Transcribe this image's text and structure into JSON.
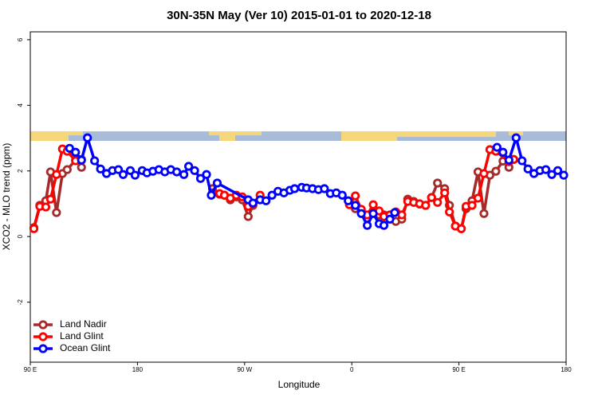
{
  "chart_data": {
    "type": "line",
    "title": "30N-35N May (Ver 10)   2015-01-01 to 2020-12-18",
    "x_label": "Longitude",
    "y_label": "XCO2 - MLO trend (ppm)",
    "xlim": [
      90,
      540
    ],
    "ylim": [
      -3.83,
      6.24
    ],
    "xticks": [
      {
        "value": 90,
        "label": "90 E"
      },
      {
        "value": 180,
        "label": "180"
      },
      {
        "value": 270,
        "label": "90 W"
      },
      {
        "value": 360,
        "label": "0"
      },
      {
        "value": 450,
        "label": "90 E"
      },
      {
        "value": 540,
        "label": "180"
      }
    ],
    "yticks": [
      -2,
      0,
      2,
      4,
      6
    ],
    "legend": "bottom-left",
    "series": [
      {
        "name": "Land Nadir",
        "color": "#a52a2a",
        "x": [
          93,
          98,
          103,
          107,
          112,
          117,
          121,
          128,
          133,
          243,
          249,
          253,
          258,
          263,
          268,
          273,
          277,
          358,
          363,
          368,
          373,
          378,
          383,
          387,
          392,
          397,
          402,
          407,
          412,
          417,
          422,
          427,
          432,
          438,
          442,
          447,
          452,
          456,
          461,
          466,
          471,
          476,
          481,
          487,
          492,
          496
        ],
        "values": [
          0.27,
          0.95,
          1.09,
          1.97,
          0.73,
          1.92,
          2.04,
          2.33,
          2.11,
          1.46,
          1.29,
          1.26,
          1.12,
          1.21,
          1.12,
          0.61,
          0.95,
          1.02,
          0.85,
          0.78,
          0.56,
          0.75,
          0.66,
          0.66,
          0.53,
          0.46,
          0.53,
          1.14,
          1.07,
          0.99,
          0.95,
          1.19,
          1.63,
          1.46,
          0.95,
          0.32,
          0.24,
          0.85,
          1.09,
          1.97,
          0.7,
          1.87,
          1.99,
          2.3,
          2.11,
          2.35
        ]
      },
      {
        "name": "Land Glint",
        "color": "#ff0000",
        "x": [
          93,
          98,
          103,
          107,
          112,
          117,
          121,
          128,
          133,
          243,
          249,
          253,
          258,
          263,
          268,
          273,
          277,
          283,
          358,
          363,
          368,
          373,
          378,
          383,
          387,
          392,
          397,
          402,
          407,
          412,
          417,
          422,
          427,
          432,
          438,
          442,
          447,
          452,
          456,
          461,
          466,
          471,
          476,
          481,
          492,
          496
        ],
        "values": [
          0.24,
          0.92,
          0.9,
          1.14,
          1.89,
          2.67,
          2.6,
          2.31,
          2.35,
          1.33,
          1.31,
          1.26,
          1.17,
          1.26,
          1.21,
          0.92,
          1.0,
          1.26,
          0.97,
          1.24,
          0.83,
          0.66,
          0.97,
          0.78,
          0.61,
          0.66,
          0.75,
          0.66,
          1.07,
          1.04,
          1.0,
          0.95,
          1.19,
          1.04,
          1.33,
          0.75,
          0.32,
          0.24,
          0.92,
          0.95,
          1.17,
          1.92,
          2.65,
          2.6,
          2.28,
          2.35
        ]
      },
      {
        "name": "Ocean Glint",
        "color": "#0000ff",
        "x": [
          123,
          128,
          133,
          138,
          144,
          149,
          154,
          159,
          164,
          168,
          174,
          178,
          184,
          188,
          193,
          198,
          203,
          208,
          213,
          219,
          223,
          228,
          233,
          238,
          242,
          247,
          273,
          277,
          283,
          288,
          293,
          298,
          303,
          308,
          312,
          318,
          322,
          327,
          332,
          337,
          342,
          347,
          352,
          357,
          363,
          368,
          373,
          378,
          383,
          387,
          392,
          396,
          482,
          487,
          492,
          498,
          503,
          508,
          513,
          518,
          523,
          528,
          533,
          538
        ],
        "values": [
          2.69,
          2.57,
          2.33,
          3.01,
          2.31,
          2.06,
          1.92,
          2.01,
          2.04,
          1.89,
          2.01,
          1.87,
          2.01,
          1.94,
          1.99,
          2.04,
          1.97,
          2.04,
          1.97,
          1.89,
          2.14,
          2.01,
          1.77,
          1.89,
          1.26,
          1.63,
          1.12,
          1.02,
          1.12,
          1.09,
          1.26,
          1.38,
          1.33,
          1.41,
          1.46,
          1.5,
          1.48,
          1.46,
          1.43,
          1.46,
          1.31,
          1.33,
          1.26,
          1.09,
          0.95,
          0.7,
          0.34,
          0.7,
          0.39,
          0.34,
          0.53,
          0.73,
          2.72,
          2.57,
          2.33,
          3.01,
          2.31,
          2.06,
          1.92,
          2.01,
          2.04,
          1.89,
          2.01,
          1.87
        ]
      }
    ]
  }
}
